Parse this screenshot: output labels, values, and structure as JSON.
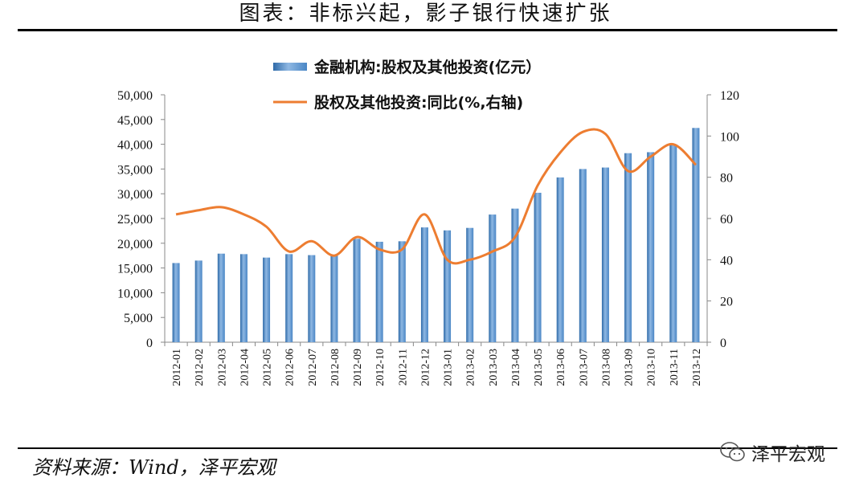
{
  "header": {
    "title": "图表：非标兴起，影子银行快速扩张"
  },
  "footer": {
    "source": "资料来源：Wind，泽平宏观",
    "brand": "泽平宏观"
  },
  "colors": {
    "bar": "#4a86c5",
    "bar_dark": "#2e6aa8",
    "line": "#ed7d31",
    "axis": "#888888"
  },
  "icons": {
    "brand": "wechat-icon"
  },
  "chart_data": {
    "type": "bar",
    "categories": [
      "2012-01",
      "2012-02",
      "2012-03",
      "2012-04",
      "2012-05",
      "2012-06",
      "2012-07",
      "2012-08",
      "2012-09",
      "2012-10",
      "2012-11",
      "2012-12",
      "2013-01",
      "2013-02",
      "2013-03",
      "2013-04",
      "2013-05",
      "2013-06",
      "2013-07",
      "2013-08",
      "2013-09",
      "2013-10",
      "2013-11",
      "2013-12"
    ],
    "series": [
      {
        "name": "金融机构:股权及其他投资(亿元）",
        "type": "bar",
        "axis": "left",
        "values": [
          16000,
          16500,
          17900,
          17800,
          17100,
          17800,
          17600,
          17500,
          20900,
          20300,
          20400,
          23200,
          22600,
          23100,
          25800,
          27000,
          30200,
          33300,
          35000,
          35300,
          38200,
          38400,
          40000,
          43300
        ]
      },
      {
        "name": "股权及其他投资:同比(%,右轴)",
        "type": "line",
        "axis": "right",
        "values": [
          62,
          64,
          65.5,
          62,
          56,
          44,
          49,
          42,
          51,
          45,
          45,
          62,
          40,
          40,
          44,
          51,
          76,
          92,
          102,
          101,
          83,
          90,
          96,
          86
        ]
      }
    ],
    "y_left": {
      "min": 0,
      "max": 50000,
      "ticks": [
        "0",
        "5,000",
        "10,000",
        "15,000",
        "20,000",
        "25,000",
        "30,000",
        "35,000",
        "40,000",
        "45,000",
        "50,000"
      ]
    },
    "y_right": {
      "min": 0,
      "max": 120,
      "ticks": [
        "0",
        "20",
        "40",
        "60",
        "80",
        "100",
        "120"
      ]
    },
    "legend": "top",
    "grid": false
  }
}
